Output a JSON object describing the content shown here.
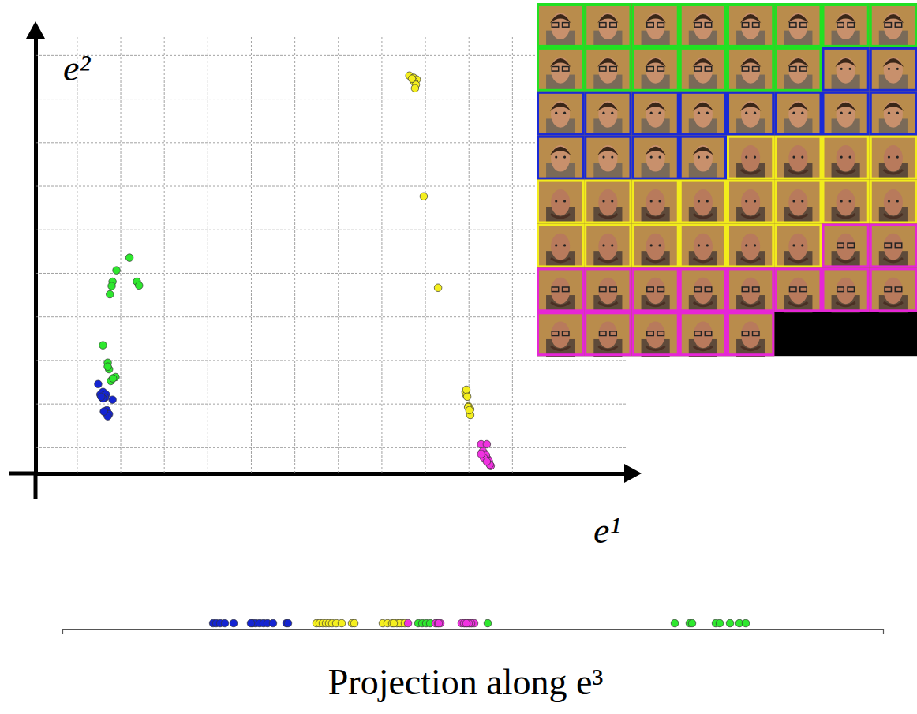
{
  "chart_data": [
    {
      "type": "scatter",
      "x_label": "e¹",
      "y_label": "e²",
      "xlim": [
        -0.95,
        12.65
      ],
      "ylim": [
        -0.6,
        9.45
      ],
      "xticks": [
        0,
        1,
        2,
        3,
        4,
        5,
        6,
        7,
        8,
        9,
        10
      ],
      "yticks": [
        0,
        1,
        2,
        3,
        4,
        5,
        6,
        7,
        8,
        9
      ],
      "grid": true,
      "tick_labels": false,
      "marker": "circle",
      "series": [
        {
          "color": "#2ee82e",
          "x": [
            1.21,
            0.91,
            0.82,
            0.8,
            0.76,
            1.38,
            1.43,
            0.6,
            0.71,
            0.74,
            0.89,
            0.78,
            0.71,
            0.83
          ],
          "values": [
            4.35,
            4.06,
            3.8,
            3.7,
            3.51,
            3.8,
            3.71,
            2.34,
            1.94,
            1.79,
            1.61,
            1.52,
            1.85,
            1.58
          ]
        },
        {
          "color": "#1424d2",
          "x": [
            0.49,
            0.6,
            0.54,
            0.67,
            0.58,
            0.82,
            0.65,
            0.69,
            0.65,
            0.74,
            0.71,
            0.6,
            0.56,
            0.62
          ],
          "values": [
            1.45,
            1.27,
            1.21,
            1.21,
            1.14,
            1.09,
            1.14,
            0.85,
            0.8,
            0.76,
            0.71,
            1.12,
            1.16,
            0.82
          ]
        },
        {
          "color": "#f5ef1e",
          "x": [
            7.64,
            7.74,
            7.81,
            7.75,
            7.79,
            7.77,
            7.7,
            7.97,
            8.3,
            8.93,
            8.95,
            9.0,
            9.04,
            8.99,
            9.04,
            8.95,
            8.97,
            9.02
          ],
          "values": [
            8.53,
            8.48,
            8.44,
            8.39,
            8.32,
            8.24,
            8.46,
            5.76,
            3.66,
            1.27,
            1.2,
            0.94,
            0.87,
            0.92,
            0.74,
            1.32,
            1.16,
            0.85
          ]
        },
        {
          "color": "#f032e0",
          "x": [
            9.29,
            9.42,
            9.33,
            9.38,
            9.44,
            9.37,
            9.47,
            9.51,
            9.33,
            9.46,
            9.4,
            9.49,
            9.35,
            9.42,
            9.29
          ],
          "values": [
            0.07,
            0.07,
            -0.14,
            -0.24,
            -0.27,
            -0.2,
            -0.34,
            -0.43,
            -0.09,
            -0.31,
            -0.18,
            -0.4,
            -0.24,
            -0.33,
            -0.16
          ]
        }
      ]
    },
    {
      "type": "strip",
      "title": "Projection along e³",
      "xlim": [
        0,
        100
      ],
      "grid": false,
      "tick_labels": false,
      "marker": "circle",
      "series": [
        {
          "color": "#1424d2",
          "values": [
            18.37,
            18.75,
            19.23,
            19.81,
            20.87,
            23.17,
            23.56,
            24.04,
            24.52,
            25.0,
            25.67,
            27.31,
            27.5,
            22.98
          ]
        },
        {
          "color": "#f5ef1e",
          "values": [
            30.96,
            31.35,
            31.73,
            32.12,
            32.5,
            32.88,
            33.37,
            34.04,
            35.29,
            35.58,
            39.04,
            39.62,
            40.19,
            40.77,
            41.35,
            41.06,
            41.73,
            40.38
          ]
        },
        {
          "color": "#2ee82e",
          "values": [
            43.37,
            43.85,
            44.33,
            44.81,
            45.58,
            51.83,
            74.62,
            76.44,
            76.73,
            79.62,
            80.1,
            81.35,
            82.5,
            83.27
          ]
        },
        {
          "color": "#f032e0",
          "values": [
            42.12,
            45.48,
            45.77,
            46.06,
            48.65,
            49.04,
            49.33,
            49.62,
            49.9,
            50.19,
            49.81,
            49.52,
            48.94,
            49.23,
            45.87
          ]
        }
      ]
    }
  ],
  "image_grid": {
    "border_colors": [
      "#22e022",
      "#22e022",
      "#22e022",
      "#22e022",
      "#22e022",
      "#22e022",
      "#22e022",
      "#22e022",
      "#22e022",
      "#22e022",
      "#22e022",
      "#22e022",
      "#22e022",
      "#22e022",
      "#1a2ad6",
      "#1a2ad6",
      "#1a2ad6",
      "#1a2ad6",
      "#1a2ad6",
      "#1a2ad6",
      "#1a2ad6",
      "#1a2ad6",
      "#1a2ad6",
      "#1a2ad6",
      "#1a2ad6",
      "#1a2ad6",
      "#1a2ad6",
      "#1a2ad6",
      "#f2ec1c",
      "#f2ec1c",
      "#f2ec1c",
      "#f2ec1c",
      "#f2ec1c",
      "#f2ec1c",
      "#f2ec1c",
      "#f2ec1c",
      "#f2ec1c",
      "#f2ec1c",
      "#f2ec1c",
      "#f2ec1c",
      "#f2ec1c",
      "#f2ec1c",
      "#f2ec1c",
      "#f2ec1c",
      "#f2ec1c",
      "#f2ec1c",
      "#e626d6",
      "#e626d6",
      "#e626d6",
      "#e626d6",
      "#e626d6",
      "#e626d6",
      "#e626d6",
      "#e626d6",
      "#e626d6",
      "#e626d6",
      "#e626d6",
      "#e626d6",
      "#e626d6",
      "#e626d6",
      "#e626d6"
    ]
  }
}
